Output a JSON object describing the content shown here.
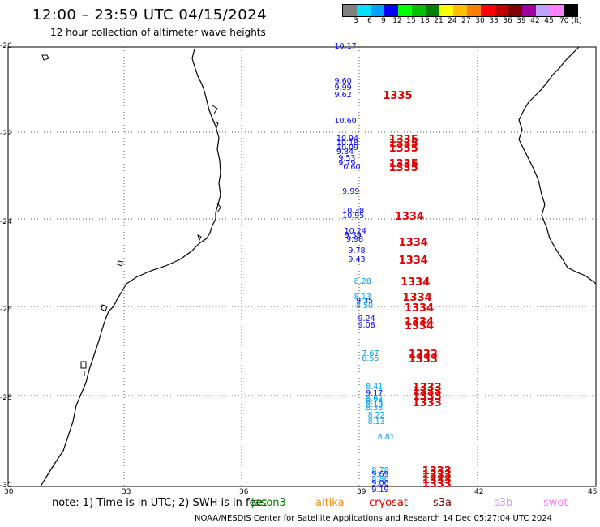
{
  "header": {
    "title": "12:00 – 23:59 UTC 04/15/2024",
    "subtitle": "12 hour collection of altimeter wave heights"
  },
  "legend": {
    "colors": [
      "#808080",
      "#00e0ff",
      "#00a0ff",
      "#0000ff",
      "#00ff00",
      "#00c000",
      "#008000",
      "#ffff00",
      "#ffc000",
      "#ff8000",
      "#ff0000",
      "#c00000",
      "#800000",
      "#a000a0",
      "#c0a0ff",
      "#ff80ff",
      "#000000"
    ],
    "labels": [
      "3",
      "6",
      "9",
      "12",
      "15",
      "18",
      "21",
      "24",
      "27",
      "30",
      "33",
      "36",
      "39",
      "42",
      "45",
      "70 (ft)"
    ]
  },
  "axes": {
    "y_labels": [
      "-20",
      "-22",
      "-24",
      "-26",
      "-28",
      "-30"
    ],
    "x_labels": [
      "30",
      "33",
      "36",
      "39",
      "42",
      "45"
    ]
  },
  "measurements": [
    {
      "text": "10.17",
      "lon": 38.7,
      "lat": -20.0,
      "color": "#0000ff"
    },
    {
      "text": "9.60",
      "lon": 38.7,
      "lat": -20.8,
      "color": "#0000ff"
    },
    {
      "text": "9.99",
      "lon": 38.7,
      "lat": -20.95,
      "color": "#0000ff"
    },
    {
      "text": "9.62",
      "lon": 38.7,
      "lat": -21.1,
      "color": "#0000ff"
    },
    {
      "text": "10.60",
      "lon": 38.7,
      "lat": -21.7,
      "color": "#0000ff"
    },
    {
      "text": "10.94",
      "lon": 38.75,
      "lat": -22.1,
      "color": "#0000ff"
    },
    {
      "text": "10.18",
      "lon": 38.75,
      "lat": -22.2,
      "color": "#0000ff"
    },
    {
      "text": "10.09",
      "lon": 38.75,
      "lat": -22.3,
      "color": "#0000ff"
    },
    {
      "text": "9.84",
      "lon": 38.75,
      "lat": -22.4,
      "color": "#0000ff"
    },
    {
      "text": "9.53",
      "lon": 38.8,
      "lat": -22.55,
      "color": "#0000ff"
    },
    {
      "text": "9.79",
      "lon": 38.8,
      "lat": -22.65,
      "color": "#0000ff"
    },
    {
      "text": "10.60",
      "lon": 38.8,
      "lat": -22.75,
      "color": "#0000ff"
    },
    {
      "text": "9.99",
      "lon": 38.9,
      "lat": -23.3,
      "color": "#0000ff"
    },
    {
      "text": "10.38",
      "lon": 38.9,
      "lat": -23.75,
      "color": "#0000ff"
    },
    {
      "text": "10.95",
      "lon": 38.9,
      "lat": -23.85,
      "color": "#0000ff"
    },
    {
      "text": "10.24",
      "lon": 38.95,
      "lat": -24.2,
      "color": "#0000ff"
    },
    {
      "text": "9.39",
      "lon": 38.95,
      "lat": -24.3,
      "color": "#0000ff"
    },
    {
      "text": "9.98",
      "lon": 39.0,
      "lat": -24.4,
      "color": "#0000ff"
    },
    {
      "text": "9.78",
      "lon": 39.05,
      "lat": -24.65,
      "color": "#0000ff"
    },
    {
      "text": "9.43",
      "lon": 39.05,
      "lat": -24.85,
      "color": "#0000ff"
    },
    {
      "text": "8.28",
      "lon": 39.2,
      "lat": -25.35,
      "color": "#00a0ff"
    },
    {
      "text": "8.13",
      "lon": 39.2,
      "lat": -25.7,
      "color": "#00a0ff"
    },
    {
      "text": "9.35",
      "lon": 39.25,
      "lat": -25.8,
      "color": "#0000ff"
    },
    {
      "text": "8.50",
      "lon": 39.25,
      "lat": -25.9,
      "color": "#00a0ff"
    },
    {
      "text": "9.24",
      "lon": 39.3,
      "lat": -26.2,
      "color": "#0000ff"
    },
    {
      "text": "9.08",
      "lon": 39.3,
      "lat": -26.35,
      "color": "#0000ff"
    },
    {
      "text": "7.67",
      "lon": 39.4,
      "lat": -27.0,
      "color": "#00a0ff"
    },
    {
      "text": "8.55",
      "lon": 39.4,
      "lat": -27.1,
      "color": "#00a0ff"
    },
    {
      "text": "8.41",
      "lon": 39.5,
      "lat": -27.75,
      "color": "#00a0ff"
    },
    {
      "text": "9.17",
      "lon": 39.5,
      "lat": -27.9,
      "color": "#0000ff"
    },
    {
      "text": "8.62",
      "lon": 39.5,
      "lat": -28.0,
      "color": "#00a0ff"
    },
    {
      "text": "8.74",
      "lon": 39.5,
      "lat": -28.08,
      "color": "#00a0ff"
    },
    {
      "text": "8.19",
      "lon": 39.5,
      "lat": -28.15,
      "color": "#00a0ff"
    },
    {
      "text": "8.38",
      "lon": 39.5,
      "lat": -28.22,
      "color": "#00a0ff"
    },
    {
      "text": "8.22",
      "lon": 39.55,
      "lat": -28.4,
      "color": "#00a0ff"
    },
    {
      "text": "8.13",
      "lon": 39.55,
      "lat": -28.55,
      "color": "#00a0ff"
    },
    {
      "text": "8.81",
      "lon": 39.8,
      "lat": -28.9,
      "color": "#00a0ff"
    },
    {
      "text": "8.78",
      "lon": 39.65,
      "lat": -29.65,
      "color": "#00a0ff"
    },
    {
      "text": "9.69",
      "lon": 39.65,
      "lat": -29.75,
      "color": "#0000ff"
    },
    {
      "text": "8.86",
      "lon": 39.65,
      "lat": -29.85,
      "color": "#00a0ff"
    },
    {
      "text": "9.06",
      "lon": 39.65,
      "lat": -29.95,
      "color": "#0000ff"
    },
    {
      "text": "9.19",
      "lon": 39.65,
      "lat": -30.1,
      "color": "#0000ff"
    }
  ],
  "pass_labels": [
    {
      "text": "1335",
      "lon": 39.4,
      "lat": -21.1
    },
    {
      "text": "1335",
      "lon": 39.55,
      "lat": -22.1
    },
    {
      "text": "1335",
      "lon": 39.55,
      "lat": -22.2
    },
    {
      "text": "1335",
      "lon": 39.55,
      "lat": -22.3
    },
    {
      "text": "1335",
      "lon": 39.55,
      "lat": -22.65
    },
    {
      "text": "1335",
      "lon": 39.55,
      "lat": -22.75
    },
    {
      "text": "1334",
      "lon": 39.7,
      "lat": -23.85
    },
    {
      "text": "1334",
      "lon": 39.8,
      "lat": -24.45
    },
    {
      "text": "1334",
      "lon": 39.8,
      "lat": -24.85
    },
    {
      "text": "1334",
      "lon": 39.85,
      "lat": -25.35
    },
    {
      "text": "1334",
      "lon": 39.9,
      "lat": -25.7
    },
    {
      "text": "1334",
      "lon": 39.95,
      "lat": -25.95
    },
    {
      "text": "1334",
      "lon": 39.95,
      "lat": -26.25
    },
    {
      "text": "1334",
      "lon": 39.95,
      "lat": -26.35
    },
    {
      "text": "1333",
      "lon": 40.05,
      "lat": -27.0
    },
    {
      "text": "1333",
      "lon": 40.05,
      "lat": -27.1
    },
    {
      "text": "1333",
      "lon": 40.15,
      "lat": -27.75
    },
    {
      "text": "1333",
      "lon": 40.15,
      "lat": -27.85
    },
    {
      "text": "1333",
      "lon": 40.15,
      "lat": -27.95
    },
    {
      "text": "1333",
      "lon": 40.15,
      "lat": -28.1
    },
    {
      "text": "1333",
      "lon": 40.4,
      "lat": -29.65
    },
    {
      "text": "1333",
      "lon": 40.4,
      "lat": -29.75
    },
    {
      "text": "1333",
      "lon": 40.4,
      "lat": -29.85
    },
    {
      "text": "1333",
      "lon": 40.4,
      "lat": -29.95
    }
  ],
  "footer": {
    "note": "note:  1) Time is in UTC; 2) SWH is in feet",
    "satellites": [
      {
        "name": "jason3",
        "color": "#008000"
      },
      {
        "name": "altika",
        "color": "#ff9000"
      },
      {
        "name": "cryosat",
        "color": "#e00000"
      },
      {
        "name": "s3a",
        "color": "#800000"
      },
      {
        "name": "s3b",
        "color": "#c0a0ff"
      },
      {
        "name": "swot",
        "color": "#ff80ff"
      }
    ],
    "credit": "NOAA/NESDIS Center for Satellite Applications and Research     14 Dec 05:27:04 UTC 2024"
  }
}
